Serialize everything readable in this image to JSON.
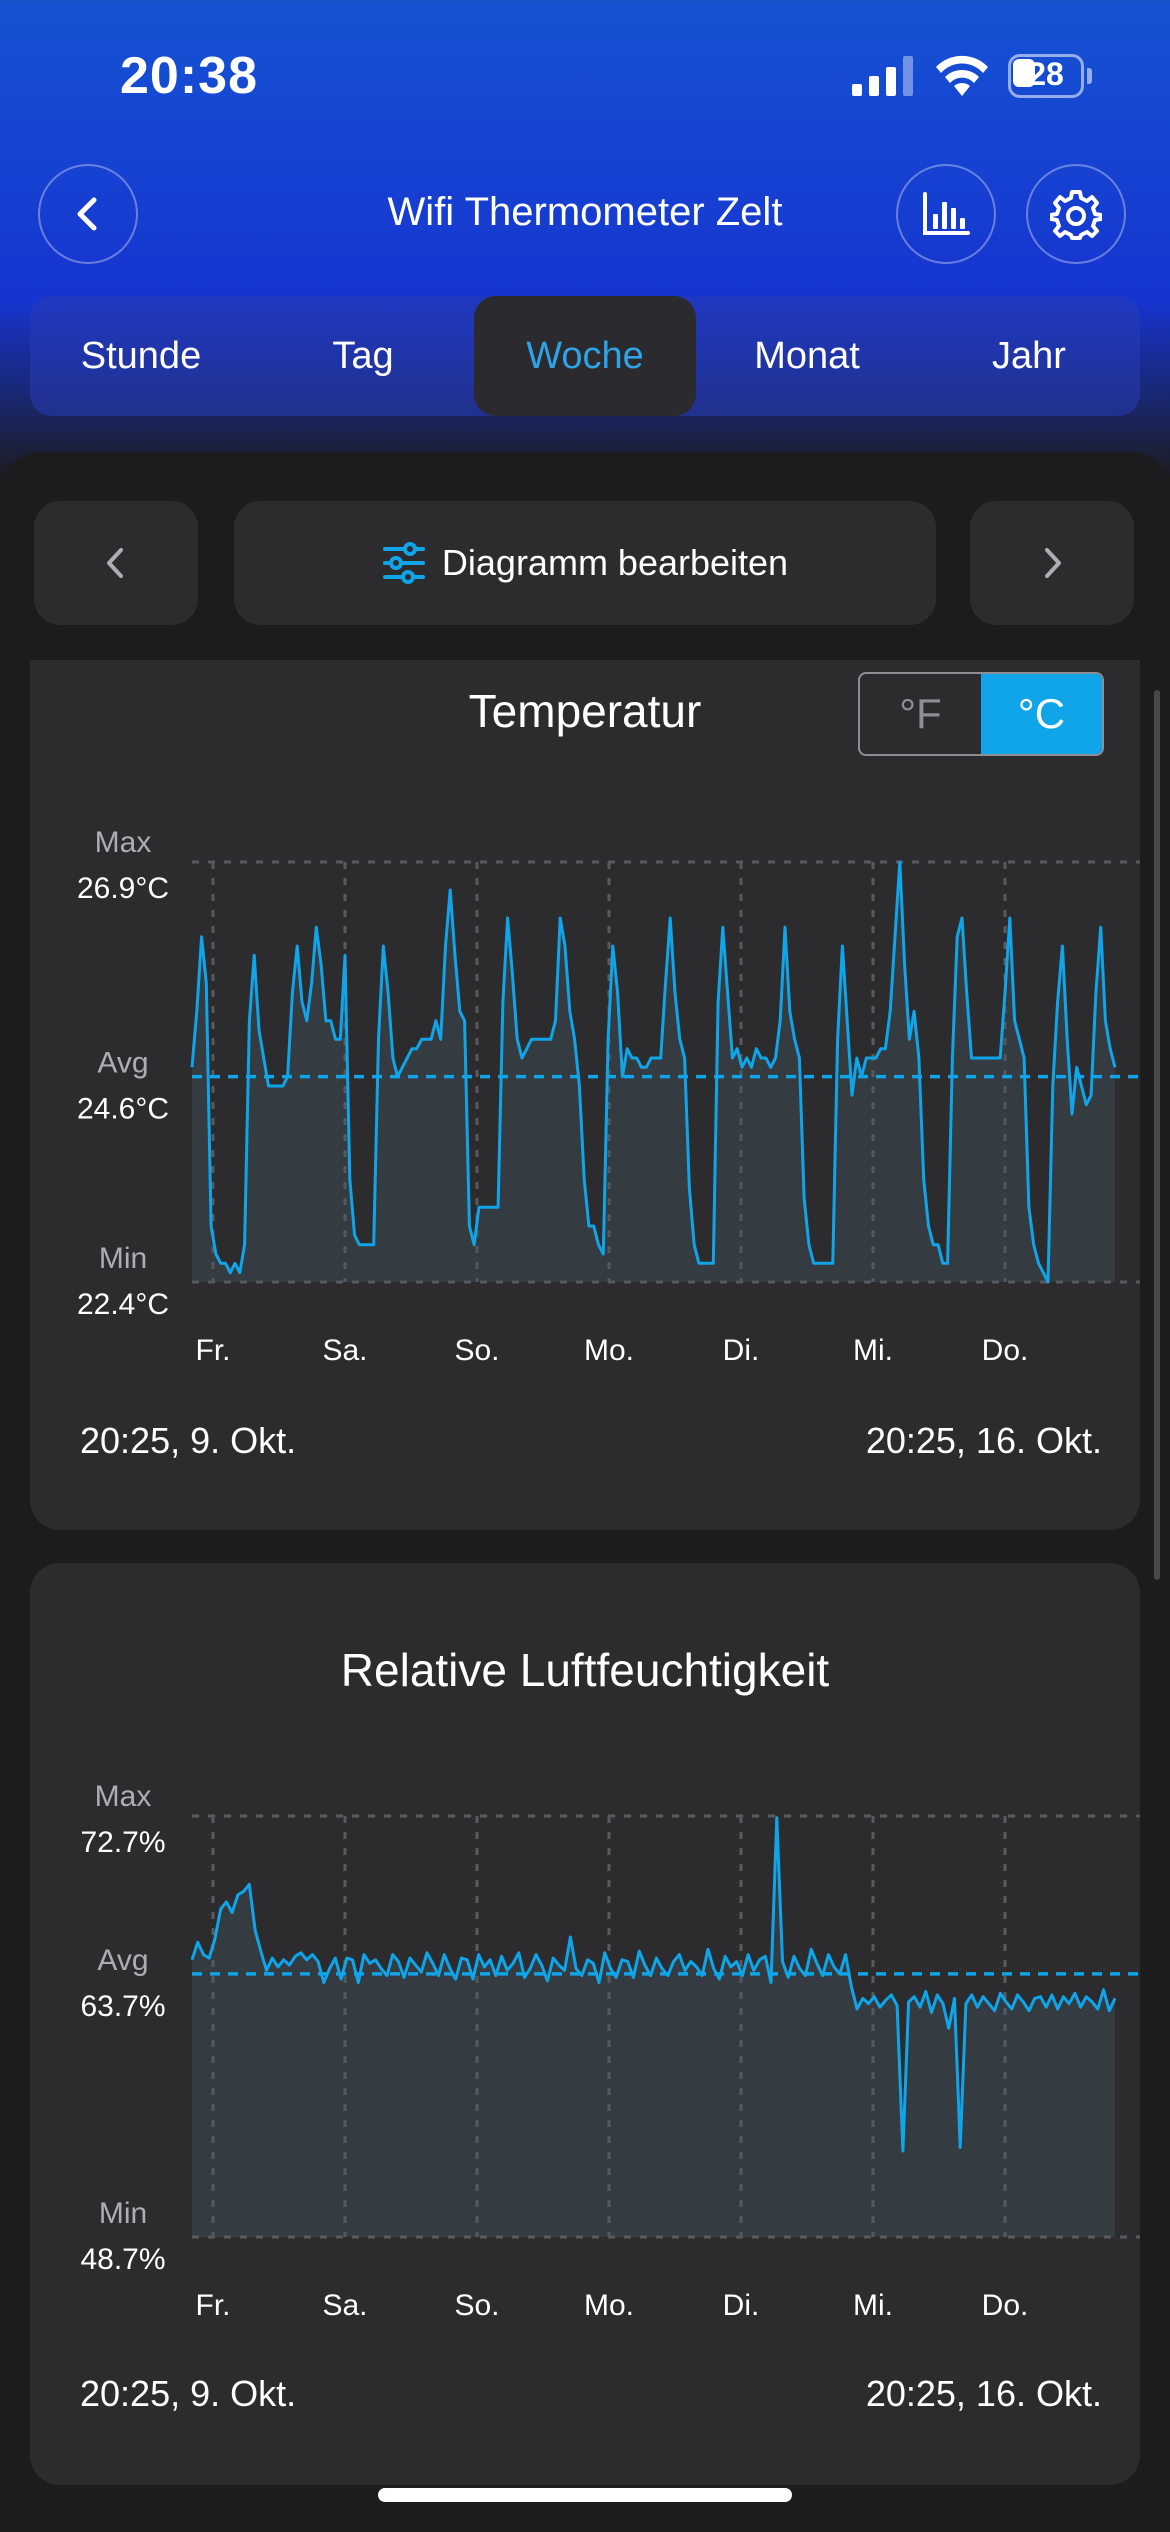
{
  "status": {
    "time": "20:38",
    "battery": "28"
  },
  "nav": {
    "title": "Wifi Thermometer Zelt"
  },
  "tabs": [
    {
      "label": "Stunde",
      "active": false
    },
    {
      "label": "Tag",
      "active": false
    },
    {
      "label": "Woche",
      "active": true
    },
    {
      "label": "Monat",
      "active": false
    },
    {
      "label": "Jahr",
      "active": false
    }
  ],
  "controls": {
    "edit_label": "Diagramm bearbeiten"
  },
  "colors": {
    "accent": "#10a4e8",
    "header_top": "#1553d2",
    "header_bottom": "#1634d0",
    "card": "#2c2c2e",
    "background": "#1c1c1e"
  },
  "temperature_card": {
    "title": "Temperatur",
    "unit_f": "°F",
    "unit_c": "°C",
    "unit_selected": "°C",
    "max_label": "Max",
    "max_value": "26.9°C",
    "avg_label": "Avg",
    "avg_value": "24.6°C",
    "min_label": "Min",
    "min_value": "22.4°C",
    "range_start": "20:25,  9. Okt.",
    "range_end": "20:25,  16. Okt."
  },
  "humidity_card": {
    "title": "Relative Luftfeuchtigkeit",
    "max_label": "Max",
    "max_value": "72.7%",
    "avg_label": "Avg",
    "avg_value": "63.7%",
    "min_label": "Min",
    "min_value": "48.7%",
    "range_start": "20:25,  9. Okt.",
    "range_end": "20:25,  16. Okt."
  },
  "chart_data": [
    {
      "type": "line",
      "title": "Temperatur",
      "x_labels": [
        "Fr.",
        "Sa.",
        "So.",
        "Mo.",
        "Di.",
        "Mi.",
        "Do."
      ],
      "ylim": [
        22.4,
        26.9
      ],
      "avg": 24.6,
      "series": [
        {
          "values": [
            24.7,
            25.3,
            26.1,
            25.6,
            23.0,
            22.7,
            22.6,
            22.6,
            22.5,
            22.6,
            22.5,
            22.8,
            25.2,
            25.9,
            25.1,
            24.8,
            24.5,
            24.5,
            24.5,
            24.5,
            24.6,
            25.5,
            26.0,
            25.4,
            25.2,
            25.6,
            26.2,
            25.8,
            25.2,
            25.2,
            25.0,
            25.0,
            25.9,
            23.5,
            22.9,
            22.8,
            22.8,
            22.8,
            22.8,
            25.0,
            26.0,
            25.5,
            24.8,
            24.6,
            24.7,
            24.8,
            24.9,
            24.9,
            25.0,
            25.0,
            25.0,
            25.2,
            25.0,
            26.0,
            26.6,
            25.9,
            25.3,
            25.2,
            23.0,
            22.8,
            23.2,
            23.2,
            23.2,
            23.2,
            23.2,
            25.4,
            26.3,
            25.7,
            25.0,
            24.8,
            24.9,
            25.0,
            25.0,
            25.0,
            25.0,
            25.0,
            25.2,
            26.3,
            26.0,
            25.3,
            25.0,
            24.5,
            23.5,
            23.0,
            23.0,
            22.8,
            22.7,
            25.0,
            26.0,
            25.5,
            24.6,
            24.9,
            24.8,
            24.8,
            24.7,
            24.7,
            24.8,
            24.8,
            24.8,
            25.6,
            26.3,
            25.5,
            25.0,
            24.8,
            23.4,
            22.8,
            22.6,
            22.6,
            22.6,
            22.6,
            25.4,
            26.2,
            25.5,
            24.8,
            24.9,
            24.7,
            24.8,
            24.7,
            24.9,
            24.8,
            24.8,
            24.7,
            24.8,
            25.2,
            26.2,
            25.3,
            25.0,
            24.8,
            23.3,
            22.8,
            22.6,
            22.6,
            22.6,
            22.6,
            22.6,
            25.0,
            26.0,
            25.2,
            24.4,
            24.8,
            24.6,
            24.8,
            24.8,
            24.8,
            24.9,
            24.9,
            25.3,
            26.1,
            26.9,
            25.8,
            25.0,
            25.3,
            24.8,
            23.5,
            23.0,
            22.8,
            22.8,
            22.6,
            22.6,
            24.8,
            26.1,
            26.3,
            25.5,
            24.8,
            24.8,
            24.8,
            24.8,
            24.8,
            24.8,
            24.8,
            25.5,
            26.3,
            25.2,
            25.0,
            24.8,
            23.2,
            22.8,
            22.6,
            22.5,
            22.4,
            24.5,
            25.4,
            26.0,
            25.0,
            24.2,
            24.7,
            24.5,
            24.3,
            24.4,
            25.5,
            26.2,
            25.2,
            24.9,
            24.7
          ]
        }
      ]
    },
    {
      "type": "line",
      "title": "Relative Luftfeuchtigkeit",
      "x_labels": [
        "Fr.",
        "Sa.",
        "So.",
        "Mo.",
        "Di.",
        "Mi.",
        "Do."
      ],
      "ylim": [
        48.7,
        72.7
      ],
      "avg": 63.7,
      "series": [
        {
          "values": [
            64.5,
            65.5,
            64.8,
            64.6,
            65.7,
            67.4,
            67.8,
            67.2,
            68.2,
            68.4,
            68.8,
            66.2,
            65.0,
            63.9,
            64.6,
            64.1,
            64.5,
            64.2,
            64.7,
            64.9,
            64.5,
            64.8,
            64.4,
            63.2,
            64.0,
            64.6,
            63.4,
            64.6,
            64.5,
            63.2,
            64.8,
            64.3,
            64.5,
            64.0,
            63.6,
            64.8,
            64.4,
            63.5,
            64.6,
            64.2,
            63.8,
            64.9,
            64.3,
            63.6,
            64.8,
            64.0,
            63.4,
            64.6,
            64.5,
            63.4,
            64.8,
            64.1,
            64.5,
            63.6,
            64.7,
            63.9,
            64.3,
            64.9,
            63.5,
            64.0,
            64.8,
            64.2,
            63.3,
            64.6,
            64.2,
            63.9,
            65.8,
            64.0,
            63.6,
            64.5,
            64.3,
            63.2,
            64.9,
            64.0,
            63.5,
            64.5,
            64.4,
            63.5,
            65.0,
            64.2,
            63.6,
            64.6,
            64.0,
            63.6,
            64.4,
            64.8,
            63.9,
            64.4,
            64.1,
            63.6,
            65.1,
            64.0,
            63.4,
            64.7,
            64.1,
            64.4,
            63.6,
            64.8,
            63.9,
            64.5,
            64.7,
            63.2,
            72.6,
            64.4,
            63.5,
            64.7,
            64.0,
            63.6,
            65.1,
            64.3,
            63.6,
            64.8,
            64.1,
            63.7,
            64.8,
            63.0,
            61.7,
            62.3,
            62.0,
            62.4,
            61.8,
            62.2,
            62.5,
            61.9,
            53.6,
            62.1,
            62.4,
            61.8,
            62.7,
            61.5,
            62.5,
            62.0,
            60.6,
            62.3,
            53.8,
            62.0,
            62.5,
            61.8,
            62.4,
            62.0,
            61.6,
            62.6,
            62.1,
            61.7,
            62.5,
            62.1,
            61.6,
            62.3,
            62.4,
            61.8,
            62.5,
            61.7,
            62.4,
            62.0,
            62.6,
            61.8,
            62.4,
            62.1,
            61.7,
            62.8,
            61.6,
            62.3
          ]
        }
      ]
    }
  ]
}
